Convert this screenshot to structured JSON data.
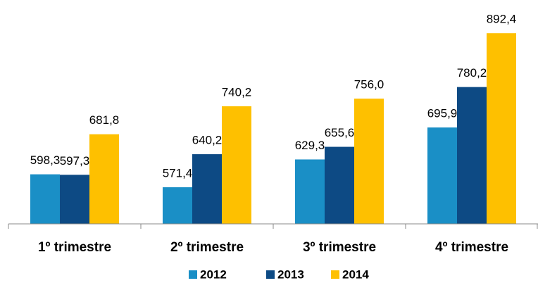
{
  "chart_data": {
    "type": "bar",
    "categories": [
      "1º trimestre",
      "2º trimestre",
      "3º trimestre",
      "4º trimestre"
    ],
    "series": [
      {
        "name": "2012",
        "color": "#1a8fc6",
        "values": [
          598.3,
          571.4,
          629.3,
          695.9
        ],
        "value_labels": [
          "598,3",
          "571,4",
          "629,3",
          "695,9"
        ]
      },
      {
        "name": "2013",
        "color": "#0d4a84",
        "values": [
          597.3,
          640.2,
          655.6,
          780.2
        ],
        "value_labels": [
          "597,3",
          "640,2",
          "655,6",
          "780,2"
        ]
      },
      {
        "name": "2014",
        "color": "#fec000",
        "values": [
          681.8,
          740.2,
          756.0,
          892.4
        ],
        "value_labels": [
          "681,8",
          "740,2",
          "756,0",
          "892,4"
        ]
      }
    ],
    "ylim": [
      495,
      900
    ],
    "legend": "bottom"
  }
}
